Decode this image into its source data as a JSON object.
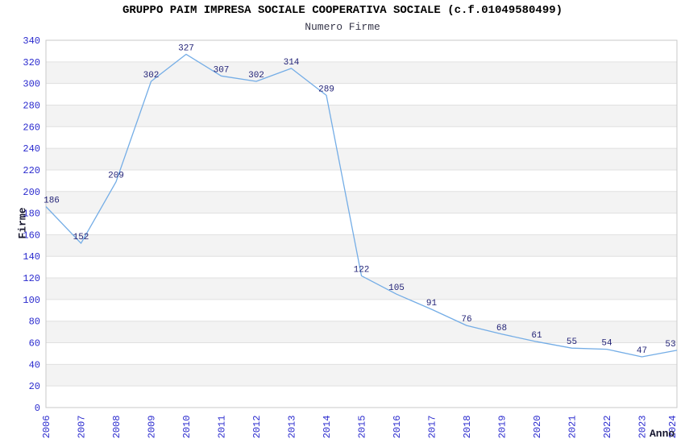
{
  "chart_data": {
    "type": "line",
    "title": "GRUPPO PAIM IMPRESA SOCIALE COOPERATIVA SOCIALE (c.f.01049580499)",
    "subtitle": "Numero Firme",
    "xlabel": "Anno",
    "ylabel": "Firme",
    "x": [
      "2006",
      "2007",
      "2008",
      "2009",
      "2010",
      "2011",
      "2012",
      "2013",
      "2014",
      "2015",
      "2016",
      "2017",
      "2018",
      "2019",
      "2020",
      "2021",
      "2022",
      "2023",
      "2024"
    ],
    "values": [
      186,
      152,
      209,
      302,
      327,
      307,
      302,
      314,
      289,
      122,
      105,
      91,
      76,
      68,
      61,
      55,
      54,
      47,
      53
    ],
    "ylim": [
      0,
      340
    ],
    "y_tick_step": 20,
    "grid": "alternating-horizontal-bands",
    "legend": "none",
    "point_labels_shown": true,
    "colors": {
      "line": "#74ade6",
      "point_label": "#232377",
      "tick_label": "#2a2ace",
      "band": "#f3f3f3",
      "gridline": "#e0e0e0",
      "plot_border": "#c9c9c9",
      "title": "#000000",
      "subtitle": "#37374a",
      "axis_title": "#15152e"
    }
  }
}
